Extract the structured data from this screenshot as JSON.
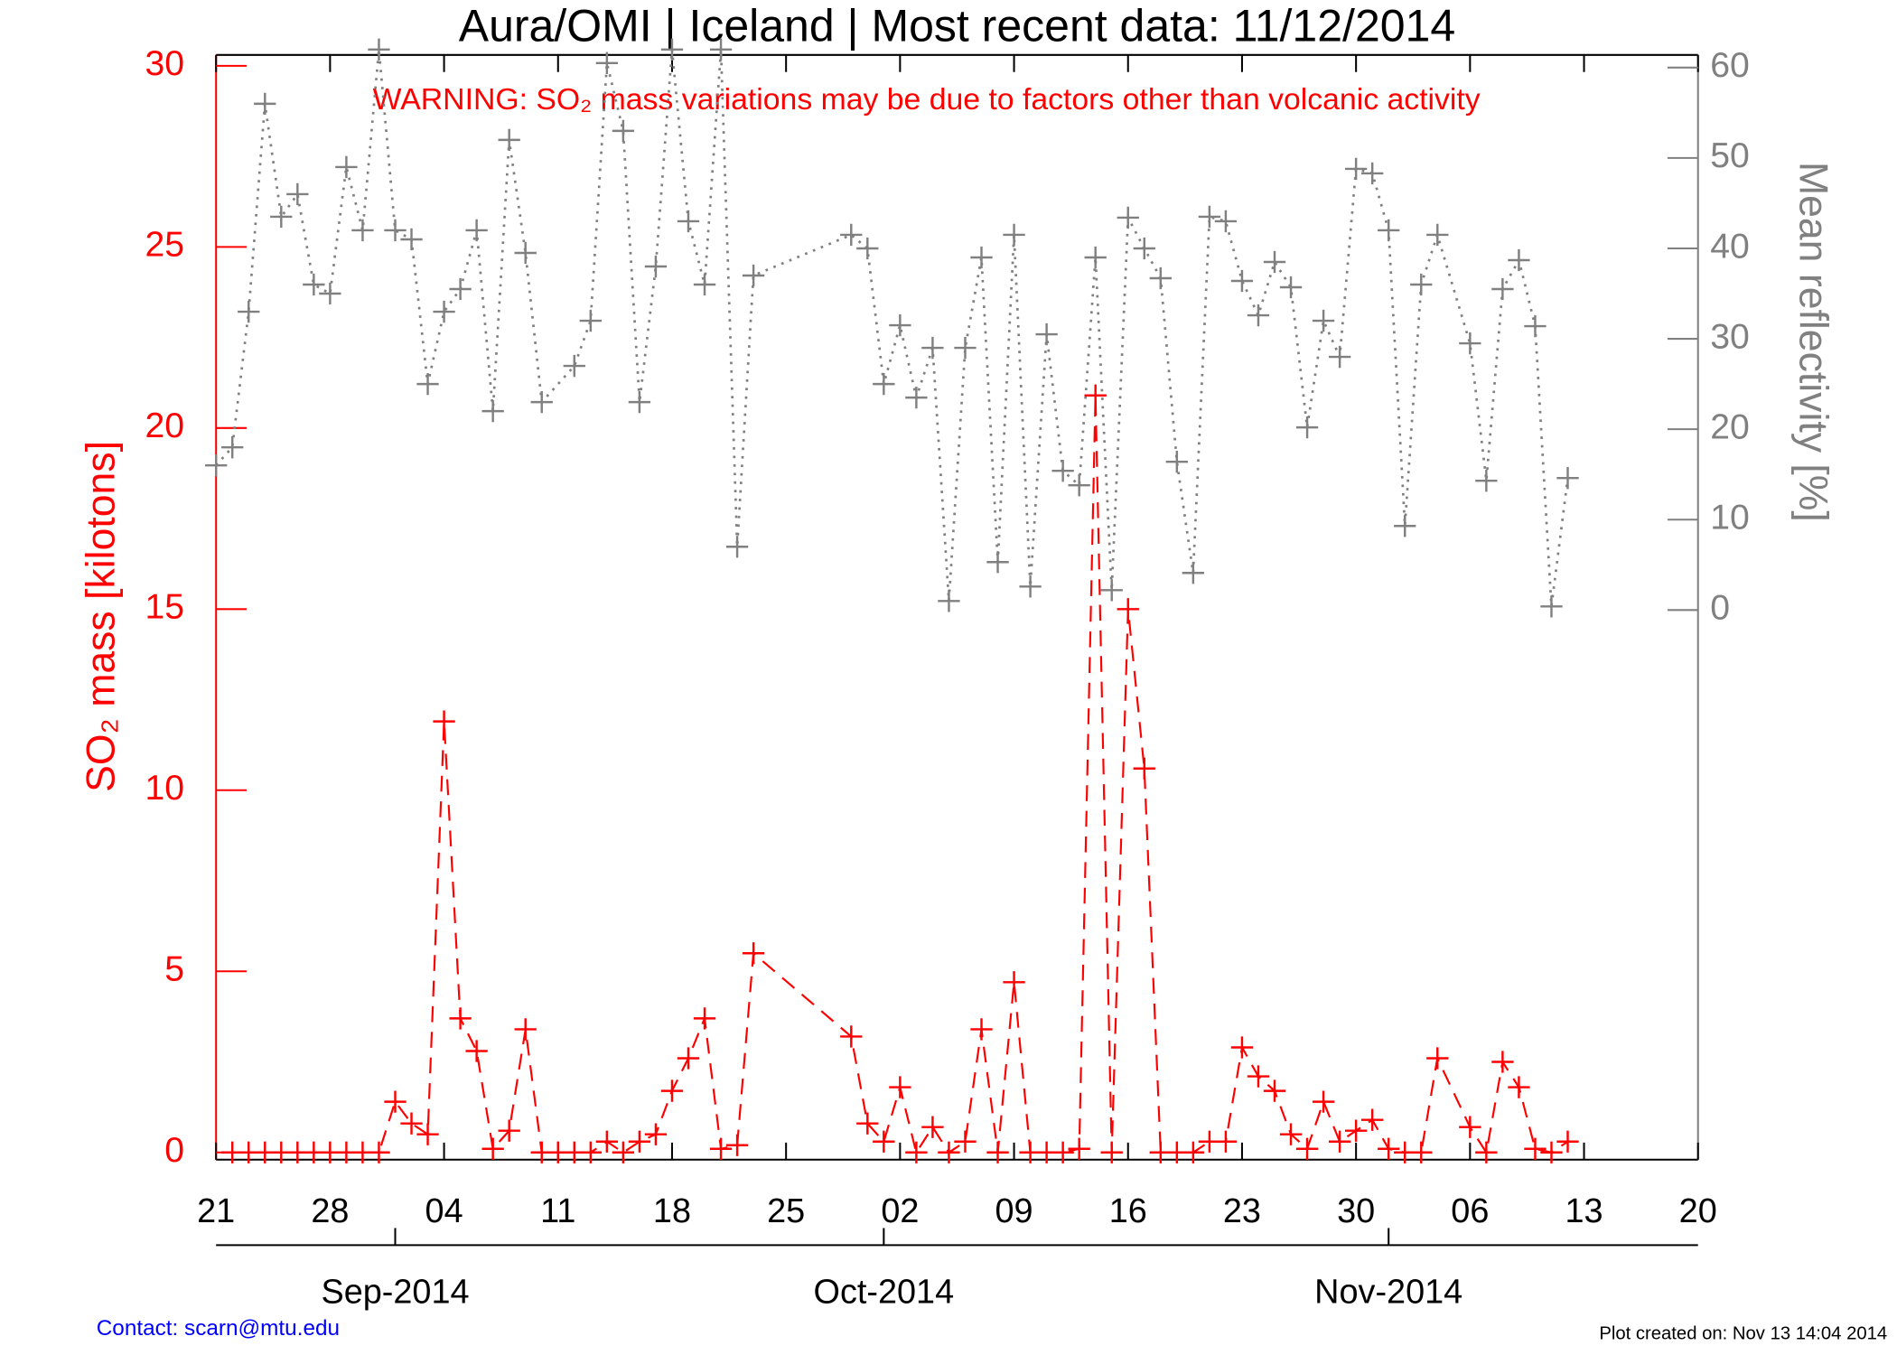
{
  "chart_data": {
    "type": "line",
    "title": "Aura/OMI | Iceland | Most recent data: 11/12/2014",
    "annotation": "WARNING: SO₂ mass variations may be due to factors other than volcanic activity",
    "ylabel": "SO₂ mass [kilotons]",
    "y2label": "Mean reflectivity [%]",
    "contact": "Contact: scarn@mtu.edu",
    "created": "Plot created on: Nov 13 14:04 2014",
    "xlim": [
      "2014-08-21",
      "2014-11-20"
    ],
    "xticks": [
      {
        "value": "2014-08-21",
        "label": "21"
      },
      {
        "value": "2014-08-28",
        "label": "28"
      },
      {
        "value": "2014-09-04",
        "label": "04"
      },
      {
        "value": "2014-09-11",
        "label": "11"
      },
      {
        "value": "2014-09-18",
        "label": "18"
      },
      {
        "value": "2014-09-25",
        "label": "25"
      },
      {
        "value": "2014-10-02",
        "label": "02"
      },
      {
        "value": "2014-10-09",
        "label": "09"
      },
      {
        "value": "2014-10-16",
        "label": "16"
      },
      {
        "value": "2014-10-23",
        "label": "23"
      },
      {
        "value": "2014-10-30",
        "label": "30"
      },
      {
        "value": "2014-11-06",
        "label": "06"
      },
      {
        "value": "2014-11-13",
        "label": "13"
      },
      {
        "value": "2014-11-20",
        "label": "20"
      }
    ],
    "month_ticks": [
      {
        "value": "2014-09-01",
        "label": "Sep-2014"
      },
      {
        "value": "2014-10-01",
        "label": "Oct-2014"
      },
      {
        "value": "2014-11-01",
        "label": "Nov-2014"
      }
    ],
    "ylim": [
      -0.2,
      30.3
    ],
    "yticks": [
      0,
      5,
      10,
      15,
      20,
      25,
      30
    ],
    "y2lim": [
      -60.8,
      61.4
    ],
    "y2ticks": [
      0,
      10,
      20,
      30,
      40,
      50,
      60
    ],
    "series": [
      {
        "name": "SO2 mass",
        "color": "#ff0000",
        "style": "dashed",
        "x": [
          "2014-08-22",
          "2014-08-23",
          "2014-08-24",
          "2014-08-25",
          "2014-08-26",
          "2014-08-27",
          "2014-08-28",
          "2014-08-29",
          "2014-08-30",
          "2014-08-31",
          "2014-09-01",
          "2014-09-02",
          "2014-09-03",
          "2014-09-04",
          "2014-09-05",
          "2014-09-06",
          "2014-09-07",
          "2014-09-08",
          "2014-09-09",
          "2014-09-10",
          "2014-09-11",
          "2014-09-12",
          "2014-09-13",
          "2014-09-14",
          "2014-09-15",
          "2014-09-16",
          "2014-09-17",
          "2014-09-18",
          "2014-09-19",
          "2014-09-20",
          "2014-09-21",
          "2014-09-22",
          "2014-09-23",
          "2014-09-29",
          "2014-09-30",
          "2014-10-01",
          "2014-10-02",
          "2014-10-03",
          "2014-10-04",
          "2014-10-05",
          "2014-10-06",
          "2014-10-07",
          "2014-10-08",
          "2014-10-09",
          "2014-10-10",
          "2014-10-11",
          "2014-10-12",
          "2014-10-13",
          "2014-10-14",
          "2014-10-15",
          "2014-10-16",
          "2014-10-17",
          "2014-10-18",
          "2014-10-19",
          "2014-10-20",
          "2014-10-21",
          "2014-10-22",
          "2014-10-23",
          "2014-10-24",
          "2014-10-25",
          "2014-10-26",
          "2014-10-27",
          "2014-10-28",
          "2014-10-29",
          "2014-10-30",
          "2014-10-31",
          "2014-11-01",
          "2014-11-02",
          "2014-11-03",
          "2014-11-04",
          "2014-11-06",
          "2014-11-07",
          "2014-11-08",
          "2014-11-09",
          "2014-11-10",
          "2014-11-11",
          "2014-11-12"
        ],
        "values": [
          0,
          0,
          0,
          0,
          0,
          0,
          0,
          0,
          0,
          0,
          1.4,
          0.8,
          0.5,
          11.9,
          3.7,
          2.8,
          0.1,
          0.6,
          3.4,
          0,
          0,
          0,
          0,
          0.3,
          0,
          0.3,
          0.5,
          1.7,
          2.6,
          3.7,
          0.1,
          0.2,
          5.5,
          3.2,
          0.8,
          0.3,
          1.8,
          0,
          0.7,
          0,
          0.3,
          3.4,
          0,
          4.7,
          0,
          0,
          0,
          0.1,
          20.9,
          0,
          15,
          10.6,
          0,
          0,
          0,
          0.3,
          0.3,
          2.9,
          2.1,
          1.7,
          0.5,
          0.1,
          1.4,
          0.3,
          0.6,
          0.9,
          0.1,
          0,
          0,
          2.6,
          0.7,
          0,
          2.5,
          1.8,
          0.1,
          0,
          0.3
        ]
      },
      {
        "name": "Mean reflectivity",
        "color": "#808080",
        "style": "dotted",
        "axis": "y2",
        "x": [
          "2014-08-21",
          "2014-08-22",
          "2014-08-23",
          "2014-08-24",
          "2014-08-25",
          "2014-08-26",
          "2014-08-27",
          "2014-08-28",
          "2014-08-29",
          "2014-08-30",
          "2014-08-31",
          "2014-09-01",
          "2014-09-02",
          "2014-09-03",
          "2014-09-04",
          "2014-09-05",
          "2014-09-06",
          "2014-09-07",
          "2014-09-08",
          "2014-09-09",
          "2014-09-10",
          "2014-09-12",
          "2014-09-13",
          "2014-09-14",
          "2014-09-15",
          "2014-09-16",
          "2014-09-17",
          "2014-09-18",
          "2014-09-19",
          "2014-09-20",
          "2014-09-21",
          "2014-09-22",
          "2014-09-23",
          "2014-09-29",
          "2014-09-30",
          "2014-10-01",
          "2014-10-02",
          "2014-10-03",
          "2014-10-04",
          "2014-10-05",
          "2014-10-06",
          "2014-10-07",
          "2014-10-08",
          "2014-10-09",
          "2014-10-10",
          "2014-10-11",
          "2014-10-12",
          "2014-10-13",
          "2014-10-14",
          "2014-10-15",
          "2014-10-16",
          "2014-10-17",
          "2014-10-18",
          "2014-10-19",
          "2014-10-20",
          "2014-10-21",
          "2014-10-22",
          "2014-10-23",
          "2014-10-24",
          "2014-10-25",
          "2014-10-26",
          "2014-10-27",
          "2014-10-28",
          "2014-10-29",
          "2014-10-30",
          "2014-10-31",
          "2014-11-01",
          "2014-11-02",
          "2014-11-03",
          "2014-11-04",
          "2014-11-06",
          "2014-11-07",
          "2014-11-08",
          "2014-11-09",
          "2014-11-10",
          "2014-11-11",
          "2014-11-12"
        ],
        "values": [
          16,
          18,
          33,
          56,
          43.5,
          46,
          36,
          35,
          49,
          42,
          62,
          42,
          41,
          25,
          33,
          35.5,
          42,
          22,
          52,
          39.5,
          23,
          27,
          32,
          60.5,
          53,
          23,
          38,
          62,
          43,
          36,
          62,
          7,
          37,
          41.5,
          40,
          25,
          31.5,
          23.5,
          29,
          1,
          29,
          39,
          5.3,
          41.5,
          2.6,
          30.5,
          15.4,
          13.8,
          39,
          2.2,
          43.4,
          40,
          36.7,
          16.4,
          4.1,
          43.5,
          43,
          36.4,
          32.6,
          38.5,
          35.7,
          20.2,
          32,
          28,
          48.8,
          48.3,
          42,
          9.3,
          36,
          41.5,
          29.5,
          14.3,
          35.5,
          38.7,
          31.4,
          0.4,
          14.6
        ]
      }
    ]
  }
}
